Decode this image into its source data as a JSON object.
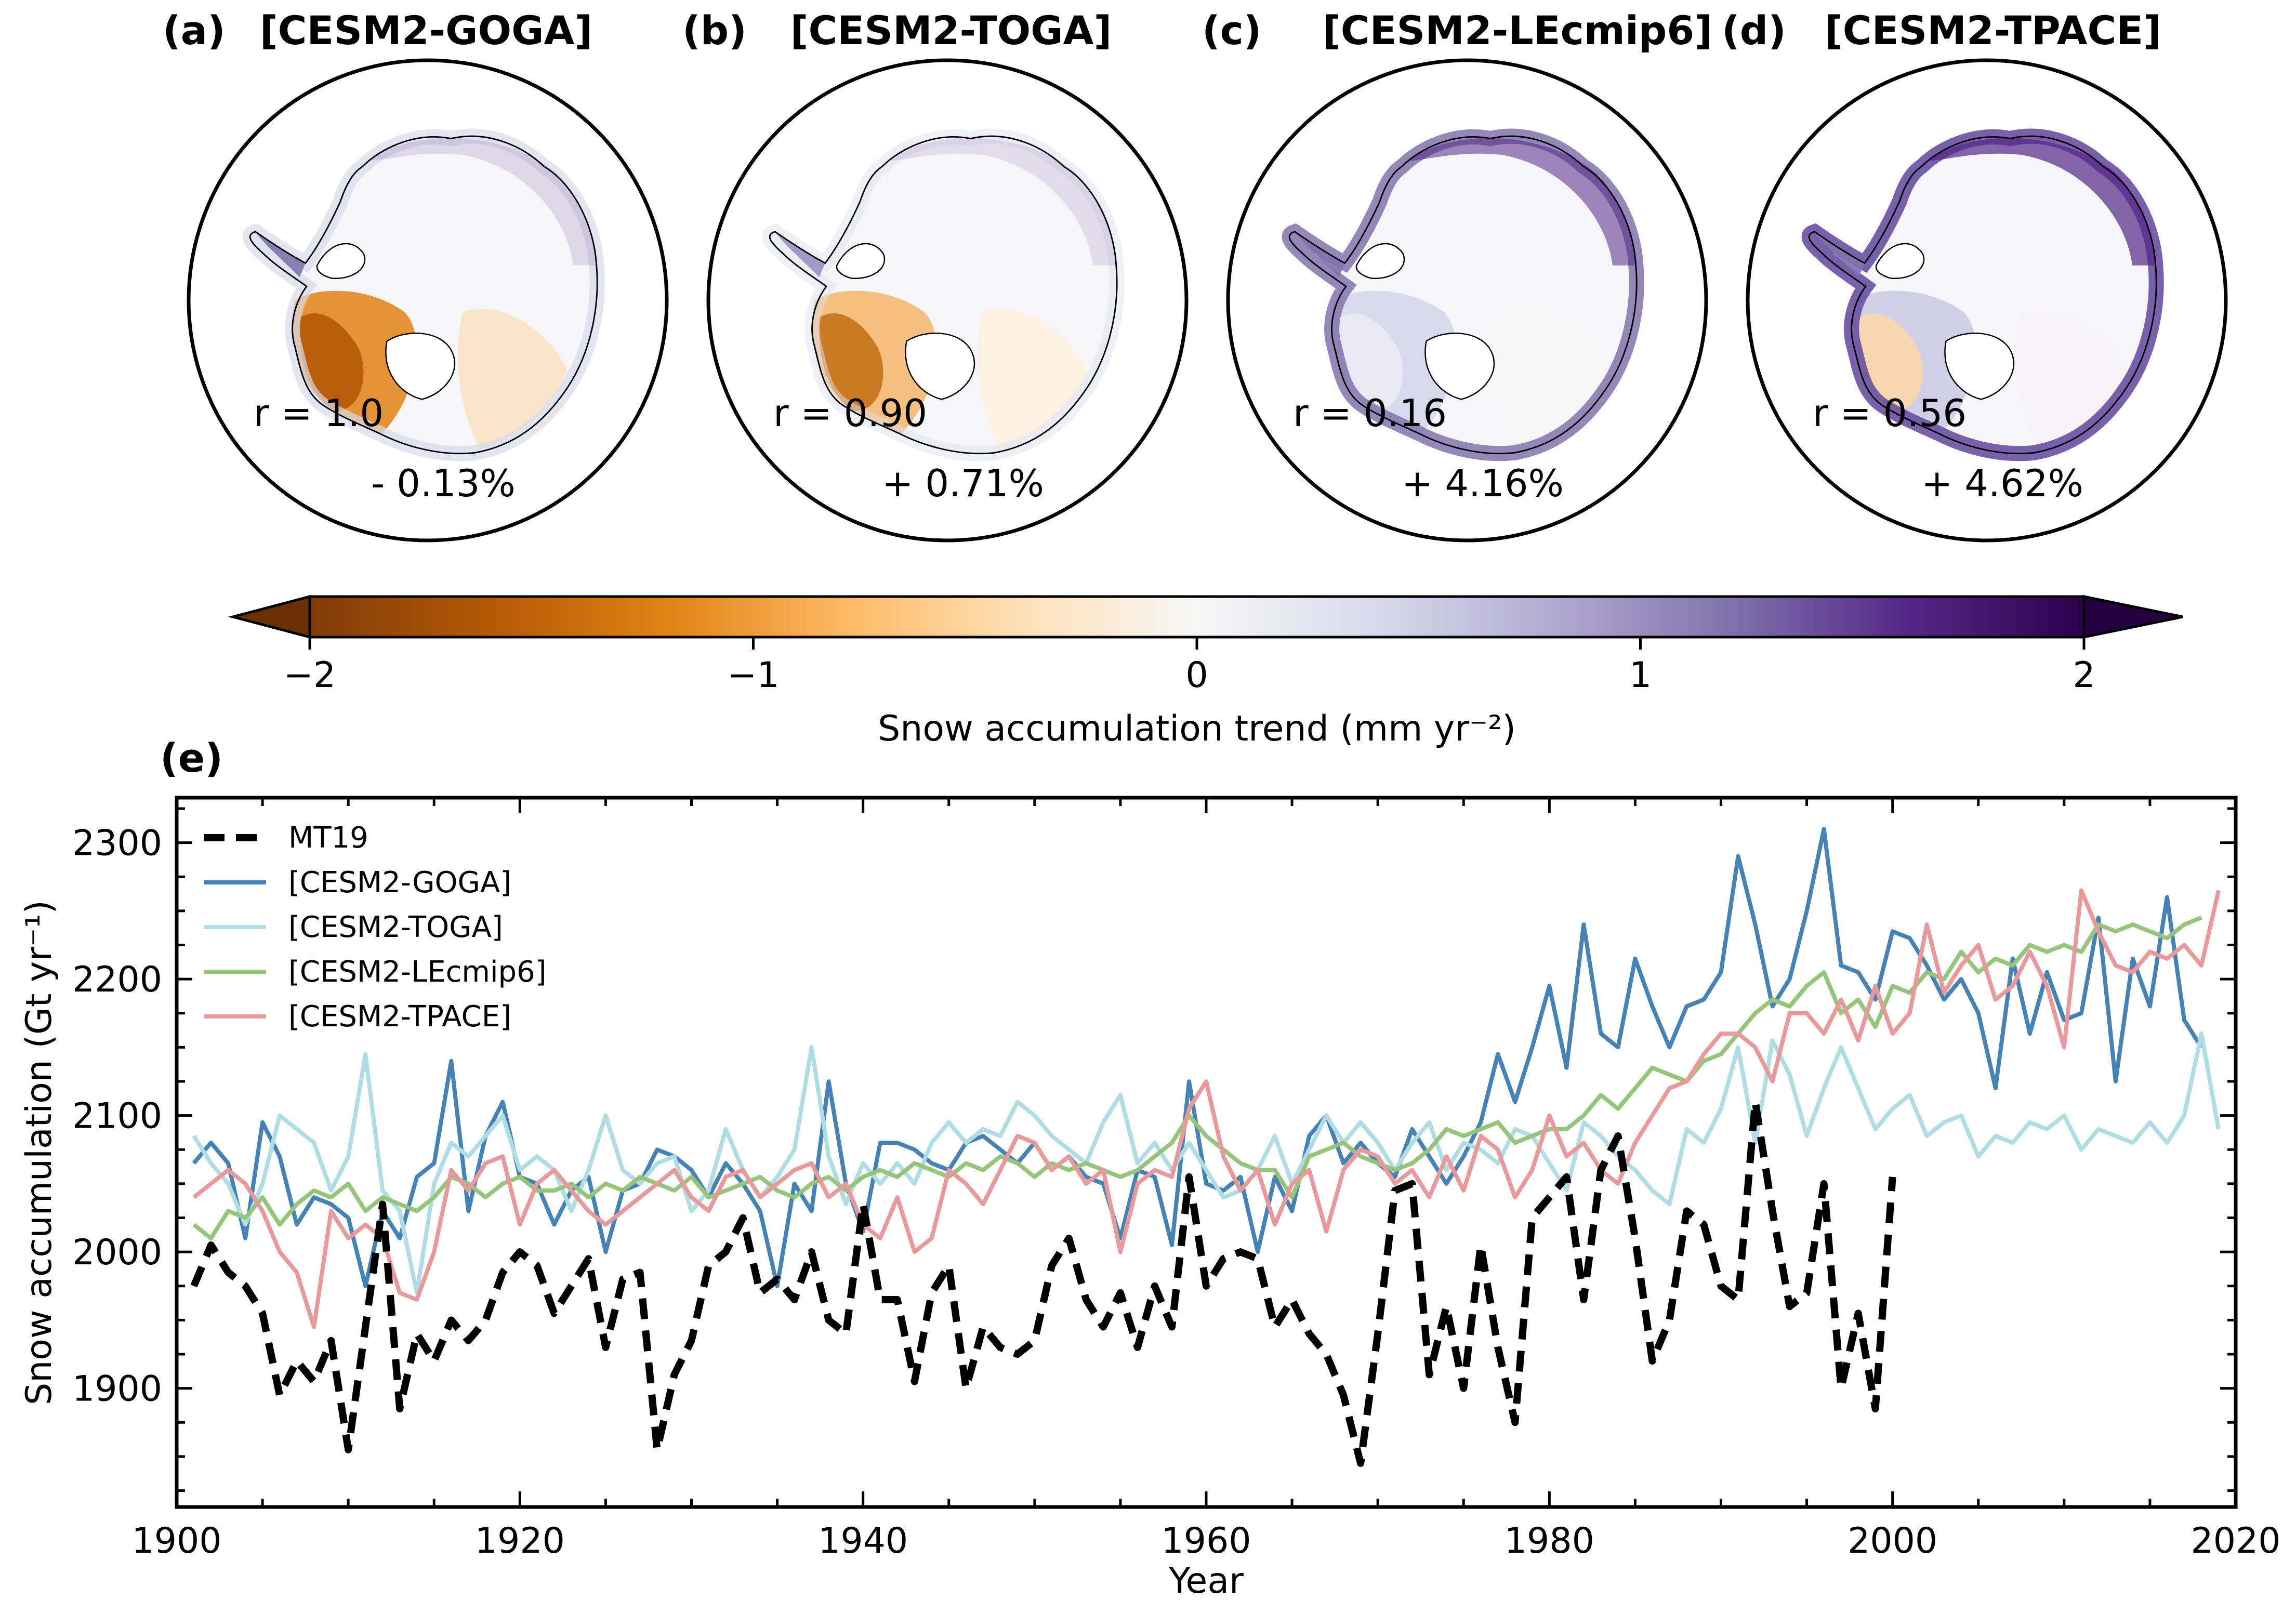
{
  "panels": [
    {
      "letter": "(a)",
      "title": "[CESM2-GOGA]",
      "r": "r = 1.0",
      "pct": "- 0.13%"
    },
    {
      "letter": "(b)",
      "title": "[CESM2-TOGA]",
      "r": "r = 0.90",
      "pct": "+ 0.71%"
    },
    {
      "letter": "(c)",
      "title": "[CESM2-LEcmip6]",
      "r": "r = 0.16",
      "pct": "+ 4.16%"
    },
    {
      "letter": "(d)",
      "title": "[CESM2-TPACE]",
      "r": "r = 0.56",
      "pct": "+ 4.62%"
    }
  ],
  "colorbar": {
    "label": "Snow accumulation trend (mm yr⁻²)",
    "ticks": [
      "−2",
      "−1",
      "0",
      "1",
      "2"
    ],
    "colors": [
      "#7f3b08",
      "#b35806",
      "#e08214",
      "#fdb863",
      "#fee0b6",
      "#f7f7f7",
      "#d8daeb",
      "#b2abd2",
      "#8073ac",
      "#542788",
      "#2d004b"
    ]
  },
  "line_panel": {
    "letter": "(e)",
    "ylabel": "Snow accumulation (Gt yr⁻¹)",
    "xlabel": "Year",
    "xticks": [
      "1900",
      "1920",
      "1940",
      "1960",
      "1980",
      "2000",
      "2020"
    ],
    "yticks": [
      "1900",
      "2000",
      "2100",
      "2200",
      "2300"
    ]
  },
  "chart_data": {
    "type": "line",
    "xlabel": "Year",
    "ylabel": "Snow accumulation (Gt yr⁻¹)",
    "xlim": [
      1900,
      2020
    ],
    "ylim": [
      1813,
      2333
    ],
    "grid": false,
    "legend_position": "top-left",
    "series": [
      {
        "name": "MT19",
        "color": "#000000",
        "style": "dashed",
        "x_start": 1901,
        "values": [
          1975,
          2005,
          1985,
          1975,
          1955,
          1895,
          1920,
          1905,
          1935,
          1855,
          1945,
          2035,
          1885,
          1940,
          1920,
          1950,
          1935,
          1950,
          1985,
          2000,
          1990,
          1955,
          1975,
          1995,
          1930,
          1980,
          1985,
          1855,
          1910,
          1935,
          1990,
          2000,
          2025,
          1970,
          1980,
          1965,
          2000,
          1950,
          1940,
          2035,
          1965,
          1965,
          1905,
          1970,
          1990,
          1900,
          1945,
          1930,
          1925,
          1935,
          1990,
          2010,
          1965,
          1945,
          1970,
          1930,
          1975,
          1945,
          2055,
          1975,
          1995,
          2000,
          1995,
          1945,
          1965,
          1940,
          1925,
          1895,
          1845,
          1940,
          2045,
          2050,
          1910,
          1960,
          1900,
          2005,
          1930,
          1875,
          2025,
          2040,
          2055,
          1965,
          2060,
          2085,
          2010,
          1920,
          1950,
          2030,
          2020,
          1975,
          1965,
          2110,
          2030,
          1960,
          1970,
          2050,
          1900,
          1955,
          1885,
          2055
        ]
      },
      {
        "name": "[CESM2-GOGA]",
        "color": "#4682b4",
        "style": "solid",
        "x_start": 1901,
        "values": [
          2065,
          2080,
          2065,
          2010,
          2095,
          2070,
          2020,
          2040,
          2035,
          2025,
          1975,
          2030,
          2010,
          2055,
          2065,
          2140,
          2030,
          2085,
          2110,
          2055,
          2050,
          2020,
          2045,
          2055,
          2000,
          2045,
          2050,
          2075,
          2070,
          2060,
          2040,
          2065,
          2050,
          2030,
          1975,
          2050,
          2030,
          2125,
          2050,
          2015,
          2080,
          2080,
          2075,
          2065,
          2060,
          2080,
          2085,
          2075,
          2065,
          2080,
          2060,
          2070,
          2055,
          2050,
          2010,
          2060,
          2055,
          2005,
          2125,
          2050,
          2045,
          2055,
          2000,
          2055,
          2030,
          2085,
          2100,
          2065,
          2080,
          2065,
          2055,
          2090,
          2070,
          2050,
          2070,
          2095,
          2145,
          2110,
          2150,
          2195,
          2135,
          2240,
          2160,
          2150,
          2215,
          2180,
          2150,
          2180,
          2185,
          2205,
          2290,
          2240,
          2180,
          2200,
          2250,
          2310,
          2210,
          2205,
          2185,
          2235,
          2230,
          2210,
          2185,
          2200,
          2175,
          2120,
          2215,
          2160,
          2205,
          2170,
          2175,
          2245,
          2125,
          2215,
          2180,
          2260,
          2170,
          2150
        ]
      },
      {
        "name": "[CESM2-TOGA]",
        "color": "#b0dde4",
        "style": "solid",
        "x_start": 1901,
        "values": [
          2085,
          2065,
          2050,
          2020,
          2050,
          2100,
          2090,
          2080,
          2045,
          2070,
          2145,
          2045,
          2030,
          1970,
          2050,
          2080,
          2070,
          2085,
          2100,
          2060,
          2070,
          2060,
          2030,
          2060,
          2100,
          2060,
          2050,
          2065,
          2070,
          2030,
          2045,
          2090,
          2060,
          2040,
          2055,
          2075,
          2150,
          2070,
          2035,
          2065,
          2050,
          2065,
          2050,
          2080,
          2095,
          2080,
          2090,
          2085,
          2110,
          2100,
          2085,
          2075,
          2065,
          2095,
          2115,
          2065,
          2080,
          2060,
          2080,
          2060,
          2040,
          2045,
          2060,
          2085,
          2050,
          2075,
          2100,
          2080,
          2095,
          2080,
          2060,
          2080,
          2095,
          2060,
          2080,
          2075,
          2065,
          2090,
          2085,
          2065,
          2045,
          2095,
          2085,
          2070,
          2060,
          2045,
          2035,
          2090,
          2080,
          2105,
          2150,
          2080,
          2155,
          2130,
          2085,
          2120,
          2150,
          2120,
          2090,
          2105,
          2115,
          2085,
          2095,
          2100,
          2070,
          2085,
          2080,
          2095,
          2090,
          2100,
          2075,
          2090,
          2085,
          2080,
          2095,
          2080,
          2100,
          2160,
          2090
        ]
      },
      {
        "name": "[CESM2-LEcmip6]",
        "color": "#95c47a",
        "style": "solid",
        "x_start": 1901,
        "values": [
          2020,
          2010,
          2030,
          2025,
          2040,
          2020,
          2035,
          2045,
          2040,
          2050,
          2030,
          2040,
          2035,
          2030,
          2040,
          2055,
          2050,
          2040,
          2050,
          2055,
          2045,
          2045,
          2050,
          2040,
          2050,
          2045,
          2055,
          2050,
          2045,
          2055,
          2040,
          2045,
          2050,
          2055,
          2045,
          2040,
          2050,
          2055,
          2045,
          2055,
          2060,
          2055,
          2065,
          2060,
          2055,
          2065,
          2060,
          2070,
          2065,
          2055,
          2065,
          2060,
          2065,
          2060,
          2055,
          2060,
          2070,
          2080,
          2100,
          2085,
          2075,
          2065,
          2060,
          2060,
          2040,
          2070,
          2075,
          2080,
          2070,
          2065,
          2060,
          2065,
          2075,
          2090,
          2085,
          2090,
          2095,
          2080,
          2085,
          2090,
          2090,
          2100,
          2115,
          2105,
          2120,
          2135,
          2130,
          2125,
          2140,
          2145,
          2160,
          2175,
          2185,
          2180,
          2195,
          2205,
          2175,
          2185,
          2165,
          2195,
          2190,
          2205,
          2200,
          2220,
          2205,
          2215,
          2210,
          2225,
          2220,
          2225,
          2220,
          2240,
          2235,
          2240,
          2235,
          2230,
          2240,
          2245
        ]
      },
      {
        "name": "[CESM2-TPACE]",
        "color": "#e8999b",
        "style": "solid",
        "x_start": 1901,
        "values": [
          2040,
          2050,
          2060,
          2050,
          2030,
          2000,
          1985,
          1945,
          2030,
          2010,
          2020,
          2010,
          1970,
          1965,
          2000,
          2060,
          2045,
          2065,
          2070,
          2020,
          2050,
          2060,
          2045,
          2030,
          2020,
          2030,
          2040,
          2050,
          2060,
          2040,
          2030,
          2055,
          2060,
          2040,
          2050,
          2060,
          2065,
          2040,
          2050,
          2020,
          2010,
          2040,
          2000,
          2010,
          2060,
          2050,
          2035,
          2060,
          2085,
          2080,
          2060,
          2070,
          2050,
          2060,
          2000,
          2050,
          2060,
          2055,
          2105,
          2125,
          2070,
          2045,
          2060,
          2020,
          2050,
          2060,
          2015,
          2060,
          2075,
          2070,
          2050,
          2060,
          2040,
          2070,
          2045,
          2085,
          2075,
          2040,
          2060,
          2100,
          2070,
          2080,
          2060,
          2050,
          2080,
          2100,
          2120,
          2125,
          2145,
          2160,
          2160,
          2150,
          2125,
          2175,
          2175,
          2160,
          2185,
          2155,
          2195,
          2160,
          2175,
          2240,
          2190,
          2210,
          2225,
          2185,
          2195,
          2220,
          2195,
          2150,
          2265,
          2235,
          2210,
          2205,
          2220,
          2215,
          2225,
          2210,
          2265
        ]
      }
    ]
  }
}
